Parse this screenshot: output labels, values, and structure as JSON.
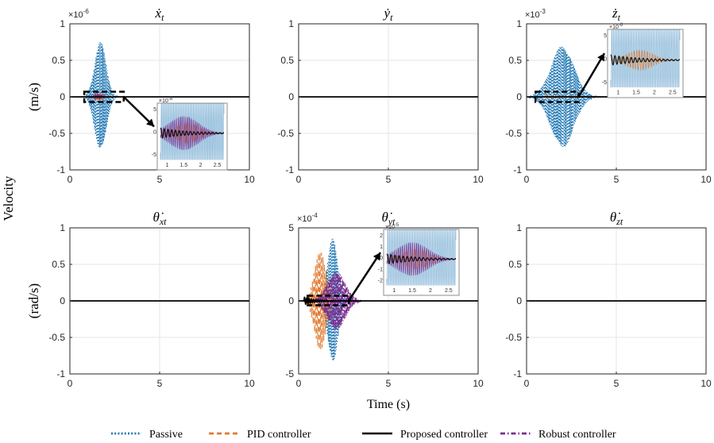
{
  "figure": {
    "ylabel": "Velocity",
    "xlabel": "Time (s)"
  },
  "colors": {
    "passive": "#1f77b4",
    "pid": "#e07a2f",
    "proposed": "#000000",
    "robust": "#7b2d8e",
    "axis": "#262626",
    "grid": "#e6e6e6"
  },
  "legend": [
    {
      "key": "passive",
      "label": "Passive",
      "style": "dotted"
    },
    {
      "key": "pid",
      "label": "PID controller",
      "style": "dashed"
    },
    {
      "key": "proposed",
      "label": "Proposed controller",
      "style": "solid"
    },
    {
      "key": "robust",
      "label": "Robust controller",
      "style": "dashdot"
    }
  ],
  "chart_data": [
    {
      "type": "line",
      "title": "ẋ",
      "title_sub": "t",
      "ylabel": "(m/s)",
      "xlim": [
        0,
        10
      ],
      "ylim": [
        -1,
        1
      ],
      "xticks": [
        "0",
        "5",
        "10"
      ],
      "yticks": [
        "-1",
        "-0.5",
        "0",
        "0.5",
        "1"
      ],
      "exponent": "×10",
      "exponent_power": "-6",
      "grid": true,
      "series": [
        {
          "key": "passive",
          "shape": "burst",
          "center": 1.7,
          "width": 0.45,
          "amplitude": 0.75,
          "oscillations_per_s": 18
        },
        {
          "key": "pid",
          "shape": "burst",
          "center": 1.6,
          "width": 0.3,
          "amplitude": 0.05,
          "oscillations_per_s": 18
        },
        {
          "key": "robust",
          "shape": "burst",
          "center": 1.6,
          "width": 0.3,
          "amplitude": 0.04,
          "oscillations_per_s": 18
        },
        {
          "key": "proposed",
          "shape": "flat",
          "value": 0
        }
      ],
      "zoom": {
        "source_x": [
          0.8,
          3.0
        ],
        "source_y": [
          -0.07,
          0.07
        ],
        "xticks": [
          "1",
          "1.5",
          "2",
          "2.5"
        ],
        "xlim": [
          0.8,
          2.7
        ],
        "yticks": [
          "5",
          "0",
          "-5"
        ],
        "exponent": "×10",
        "exponent_power": "-8"
      }
    },
    {
      "type": "line",
      "title": "ẏ",
      "title_sub": "t",
      "ylabel": "",
      "xlim": [
        0,
        10
      ],
      "ylim": [
        -1,
        1
      ],
      "xticks": [
        "0",
        "5",
        "10"
      ],
      "yticks": [
        "-1",
        "-0.5",
        "0",
        "0.5",
        "1"
      ],
      "grid": true,
      "series": [
        {
          "key": "proposed",
          "shape": "flat",
          "value": 0
        }
      ]
    },
    {
      "type": "line",
      "title": "ż",
      "title_sub": "t",
      "ylabel": "",
      "xlim": [
        0,
        10
      ],
      "ylim": [
        -1,
        1
      ],
      "xticks": [
        "0",
        "5",
        "10"
      ],
      "yticks": [
        "-1",
        "-0.5",
        "0",
        "0.5",
        "1"
      ],
      "exponent": "×10",
      "exponent_power": "-3",
      "grid": true,
      "series": [
        {
          "key": "passive",
          "shape": "burst",
          "center": 2.0,
          "width": 0.9,
          "amplitude": 0.7,
          "oscillations_per_s": 18
        },
        {
          "key": "pid",
          "shape": "decay",
          "start": 1.0,
          "amplitude": 0.02,
          "tau": 2.0,
          "oscillations_per_s": 10
        },
        {
          "key": "proposed",
          "shape": "flat",
          "value": 0
        }
      ],
      "zoom": {
        "source_x": [
          0.5,
          2.9
        ],
        "source_y": [
          -0.07,
          0.07
        ],
        "xticks": [
          "1",
          "1.5",
          "2",
          "2.5"
        ],
        "xlim": [
          0.8,
          2.7
        ],
        "yticks": [
          "5",
          "0",
          "-5"
        ],
        "exponent": "×10",
        "exponent_power": "-6"
      }
    },
    {
      "type": "line",
      "title": "θ̇",
      "title_sub": "xt",
      "ylabel": "(rad/s)",
      "xlim": [
        0,
        10
      ],
      "ylim": [
        -1,
        1
      ],
      "xticks": [
        "0",
        "5",
        "10"
      ],
      "yticks": [
        "-1",
        "-0.5",
        "0",
        "0.5",
        "1"
      ],
      "grid": true,
      "series": [
        {
          "key": "proposed",
          "shape": "flat",
          "value": 0
        }
      ]
    },
    {
      "type": "line",
      "title": "θ̇",
      "title_sub": "yt",
      "ylabel": "",
      "xlim": [
        0,
        10
      ],
      "ylim": [
        -5,
        5
      ],
      "xticks": [
        "0",
        "5",
        "10"
      ],
      "yticks": [
        "-5",
        "0",
        "5"
      ],
      "exponent": "×10",
      "exponent_power": "-4",
      "grid": true,
      "series": [
        {
          "key": "passive",
          "shape": "burst",
          "center": 1.9,
          "width": 0.4,
          "amplitude": 4.3,
          "oscillations_per_s": 18
        },
        {
          "key": "pid",
          "shape": "burst",
          "center": 1.2,
          "width": 0.45,
          "amplitude": 3.4,
          "oscillations_per_s": 12
        },
        {
          "key": "robust",
          "shape": "burst",
          "center": 2.1,
          "width": 0.7,
          "amplitude": 2.0,
          "oscillations_per_s": 16
        },
        {
          "key": "proposed",
          "shape": "decay",
          "start": 0.3,
          "amplitude": 0.25,
          "tau": 0.6,
          "oscillations_per_s": 8
        }
      ],
      "zoom": {
        "source_x": [
          0.5,
          2.8
        ],
        "source_y": [
          -0.3,
          0.35
        ],
        "xticks": [
          "1",
          "1.5",
          "2",
          "2.5"
        ],
        "xlim": [
          0.8,
          2.7
        ],
        "yticks": [
          "2",
          "1",
          "0",
          "-1",
          "-2"
        ],
        "exponent": "×10",
        "exponent_power": "-5"
      }
    },
    {
      "type": "line",
      "title": "θ̇",
      "title_sub": "zt",
      "ylabel": "",
      "xlim": [
        0,
        10
      ],
      "ylim": [
        -1,
        1
      ],
      "xticks": [
        "0",
        "5",
        "10"
      ],
      "yticks": [
        "-1",
        "-0.5",
        "0",
        "0.5",
        "1"
      ],
      "grid": true,
      "series": [
        {
          "key": "proposed",
          "shape": "flat",
          "value": 0
        }
      ]
    }
  ]
}
